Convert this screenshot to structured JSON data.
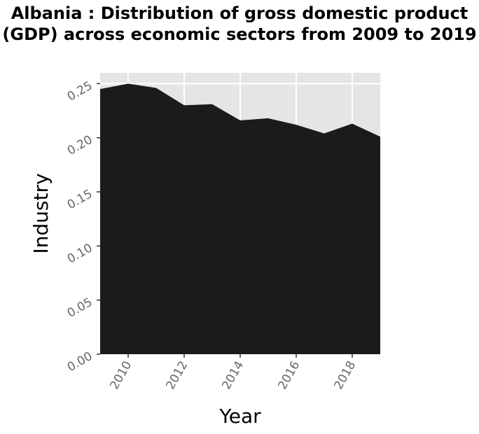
{
  "chart_data": {
    "type": "area",
    "title": "Albania : Distribution of gross domestic product (GDP) across economic sectors from 2009 to 2019",
    "xlabel": "Year",
    "ylabel": "Industry",
    "x": [
      2009,
      2010,
      2011,
      2012,
      2013,
      2014,
      2015,
      2016,
      2017,
      2018,
      2019
    ],
    "series": [
      {
        "values": [
          0.245,
          0.25,
          0.246,
          0.23,
          0.231,
          0.216,
          0.218,
          0.212,
          0.204,
          0.213,
          0.201
        ]
      }
    ],
    "xlim": [
      2009,
      2019
    ],
    "ylim": [
      0,
      0.26
    ],
    "x_ticks": [
      "2010",
      "2012",
      "2014",
      "2016",
      "2018"
    ],
    "y_ticks": [
      "0.00",
      "0.05",
      "0.10",
      "0.15",
      "0.20",
      "0.25"
    ],
    "grid": true,
    "colors": {
      "area": "#1b1b1b",
      "panel": "#e5e5e5",
      "grid": "#ffffff",
      "tick_text": "#666666"
    }
  }
}
